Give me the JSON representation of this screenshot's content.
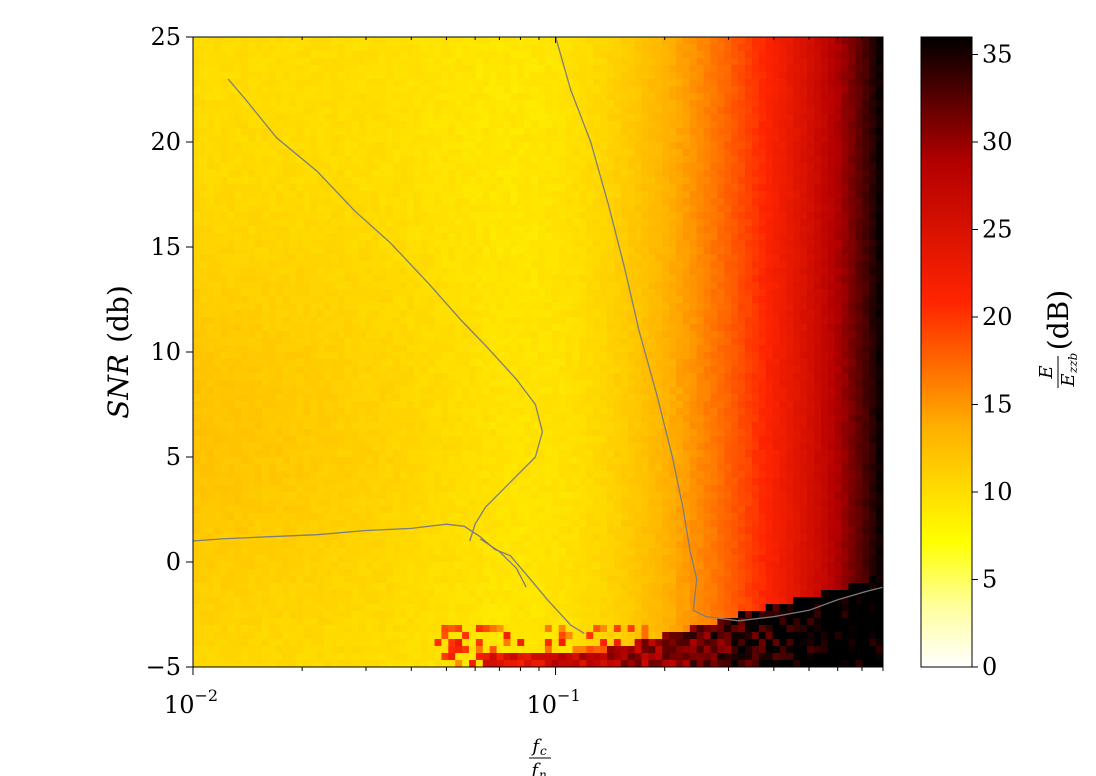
{
  "chart_data": {
    "type": "heatmap",
    "x_scale": "log",
    "xlim": [
      0.01,
      0.8
    ],
    "ylim": [
      -5,
      25
    ],
    "colorbar_range": [
      0,
      36
    ],
    "colormap": [
      "#ffffff",
      "#ffff99",
      "#ffff00",
      "#ffb000",
      "#ff2400",
      "#b40000",
      "#000000"
    ],
    "contour_color": "#7d7d7d",
    "x_ticks": [
      {
        "value": 0.01,
        "base": "10",
        "exp": "−2"
      },
      {
        "value": 0.1,
        "base": "10",
        "exp": "−1"
      }
    ],
    "y_ticks": [
      {
        "value": 25,
        "label": "25"
      },
      {
        "value": 20,
        "label": "20"
      },
      {
        "value": 15,
        "label": "15"
      },
      {
        "value": 10,
        "label": "10"
      },
      {
        "value": 5,
        "label": "5"
      },
      {
        "value": 0,
        "label": "0"
      },
      {
        "value": -5,
        "label": "−5"
      }
    ],
    "colorbar_ticks": [
      {
        "value": 35,
        "label": "35"
      },
      {
        "value": 30,
        "label": "30"
      },
      {
        "value": 25,
        "label": "25"
      },
      {
        "value": 20,
        "label": "20"
      },
      {
        "value": 15,
        "label": "15"
      },
      {
        "value": 10,
        "label": "10"
      },
      {
        "value": 5,
        "label": "5"
      },
      {
        "value": 0,
        "label": "0"
      }
    ],
    "ylabel": {
      "italic": "SNR",
      "rest": "(db)"
    },
    "xlabel": {
      "num": "f",
      "num_sub": "c",
      "den": "f",
      "den_sub": "n"
    },
    "colorbar_label": {
      "num": "E",
      "den": "E",
      "den_sub": "zzb",
      "rest": "(dB)"
    },
    "contours": [
      {
        "level_db": 10,
        "points": [
          [
            0.0125,
            23
          ],
          [
            0.014,
            22
          ],
          [
            0.017,
            20.2
          ],
          [
            0.022,
            18.6
          ],
          [
            0.028,
            16.7
          ],
          [
            0.035,
            15.2
          ],
          [
            0.045,
            13.2
          ],
          [
            0.055,
            11.5
          ],
          [
            0.065,
            10.2
          ],
          [
            0.078,
            8.7
          ],
          [
            0.088,
            7.5
          ],
          [
            0.092,
            6.2
          ],
          [
            0.088,
            5
          ],
          [
            0.075,
            3.8
          ],
          [
            0.064,
            2.6
          ],
          [
            0.06,
            1.8
          ],
          [
            0.058,
            1
          ]
        ]
      },
      {
        "level_db": 10,
        "points": [
          [
            0.01,
            1
          ],
          [
            0.012,
            1.1
          ],
          [
            0.016,
            1.2
          ],
          [
            0.022,
            1.3
          ],
          [
            0.03,
            1.5
          ],
          [
            0.04,
            1.6
          ],
          [
            0.05,
            1.8
          ],
          [
            0.056,
            1.7
          ],
          [
            0.062,
            1.2
          ],
          [
            0.068,
            0.6
          ],
          [
            0.075,
            0.3
          ],
          [
            0.085,
            -0.8
          ],
          [
            0.095,
            -1.8
          ],
          [
            0.11,
            -3
          ],
          [
            0.12,
            -3.4
          ]
        ]
      },
      {
        "level_db": 10,
        "points": [
          [
            0.062,
            1.1
          ],
          [
            0.07,
            0.5
          ],
          [
            0.078,
            -0.3
          ],
          [
            0.083,
            -1.2
          ]
        ]
      },
      {
        "level_db": 8,
        "points": [
          [
            0.1,
            25
          ],
          [
            0.11,
            22.5
          ],
          [
            0.125,
            20
          ],
          [
            0.14,
            17
          ],
          [
            0.155,
            14
          ],
          [
            0.17,
            11
          ],
          [
            0.19,
            8
          ],
          [
            0.21,
            5
          ],
          [
            0.225,
            2.5
          ],
          [
            0.235,
            0.5
          ],
          [
            0.245,
            -0.8
          ],
          [
            0.24,
            -2.3
          ],
          [
            0.26,
            -2.6
          ],
          [
            0.32,
            -2.8
          ],
          [
            0.4,
            -2.6
          ],
          [
            0.5,
            -2.3
          ],
          [
            0.6,
            -1.8
          ],
          [
            0.72,
            -1.4
          ],
          [
            0.8,
            -1.2
          ]
        ]
      }
    ]
  }
}
